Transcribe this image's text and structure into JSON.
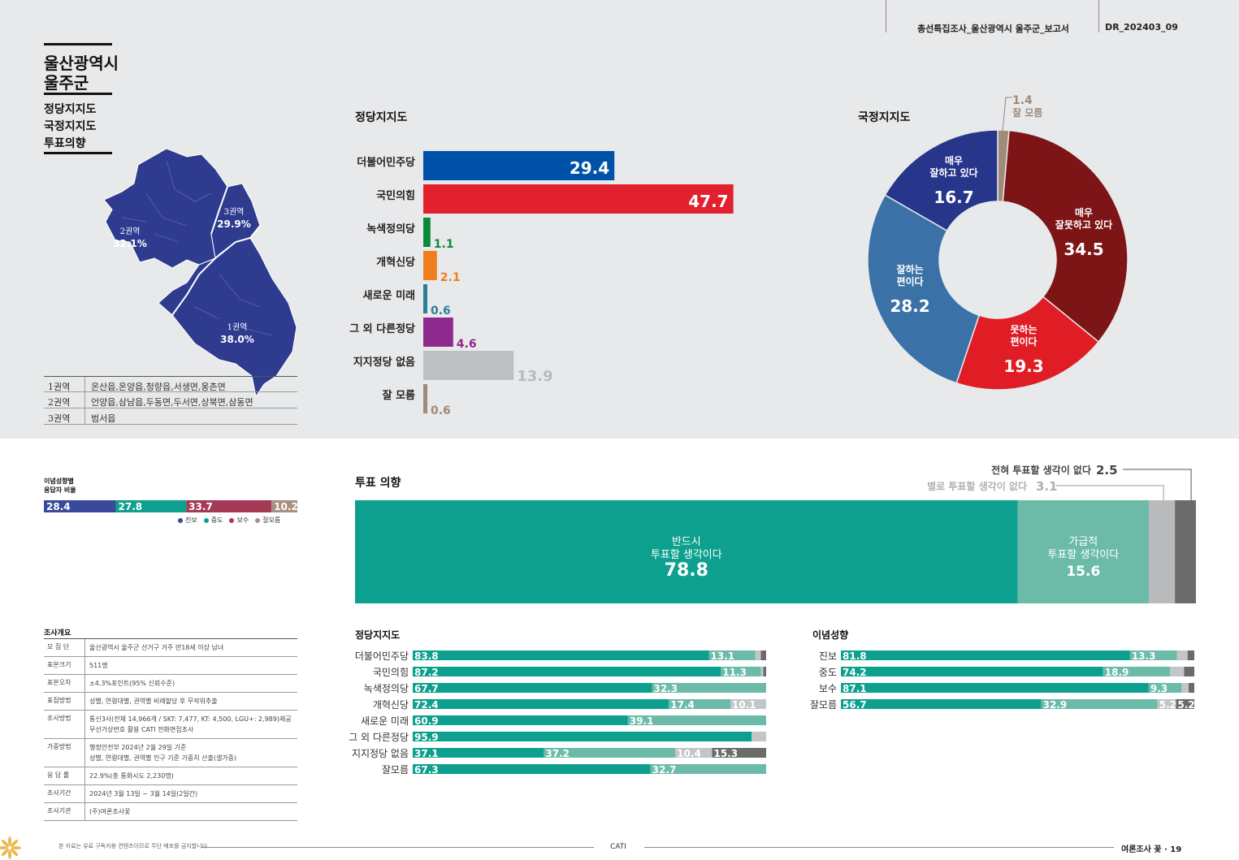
{
  "header": {
    "title": "총선특집조사_울산광역시 울주군_보고서",
    "code": "DR_202403_09"
  },
  "page_title": {
    "line1": "울산광역시",
    "line2": "울주군"
  },
  "subnav": [
    "정당지지도",
    "국정지지도",
    "투표의향"
  ],
  "map": {
    "regions": [
      {
        "label": "1권역",
        "pct": "38.0%"
      },
      {
        "label": "2권역",
        "pct": "32.1%"
      },
      {
        "label": "3권역",
        "pct": "29.9%"
      }
    ],
    "color": "#2f3b8f"
  },
  "region_table": [
    {
      "name": "1권역",
      "desc": "온산읍,온양읍,청량읍,서생면,웅촌면"
    },
    {
      "name": "2권역",
      "desc": "언양읍,삼남읍,두동면,두서면,상북면,삼동면"
    },
    {
      "name": "3권역",
      "desc": "범서읍"
    }
  ],
  "ideology_mix": {
    "title_line1": "이념성향별",
    "title_line2": "응답자 비율",
    "segments": [
      {
        "name": "진보",
        "value": 28.4,
        "label": "28.4",
        "color": "#3a4a9a"
      },
      {
        "name": "중도",
        "value": 27.8,
        "label": "27.8",
        "color": "#0ea08e"
      },
      {
        "name": "보수",
        "value": 33.7,
        "label": "33.7",
        "color": "#a43a55"
      },
      {
        "name": "잘모름",
        "value": 10.2,
        "label": "10.2",
        "color": "#a89080"
      }
    ]
  },
  "survey": {
    "title": "조사개요",
    "rows": [
      {
        "k": "모 집 단",
        "v": [
          "울산광역시 울주군 선거구 거주 만18세 이상 남녀"
        ]
      },
      {
        "k": "표본크기",
        "v": [
          "511명"
        ]
      },
      {
        "k": "표본오차",
        "v": [
          "±4.3%포인트(95% 신뢰수준)"
        ]
      },
      {
        "k": "표집방법",
        "v": [
          "성별, 연령대별, 권역별 비례할당 후 무작위추출"
        ]
      },
      {
        "k": "조사방법",
        "v": [
          "통신3사(전체 14,966개 / SKT: 7,477, KT: 4,500, LGU+: 2,989)제공",
          "무선가상번호 활용 CATI 전화면접조사"
        ]
      },
      {
        "k": "가중방법",
        "v": [
          "행정안전부 2024년 2월 29일 기준",
          "성별, 연령대별, 권역별 인구 기준 가중치 산출(셀가중)"
        ]
      },
      {
        "k": "응 답 률",
        "v": [
          "22.9%(총 통화시도 2,230명)"
        ]
      },
      {
        "k": "조사기간",
        "v": [
          "2024년 3월 13일 ~ 3월 14일(2일간)"
        ]
      },
      {
        "k": "조사기관",
        "v": [
          "(주)여론조사꽃"
        ]
      }
    ]
  },
  "footer": {
    "note": "본 자료는 유료 구독자용 컨텐츠이므로 무단 배포를 금지합니다",
    "center": "CATI",
    "right": "여론조사 꽃 · 19"
  },
  "chart_data": [
    {
      "id": "party_support",
      "type": "bar",
      "title": "정당지지도",
      "categories": [
        "더불어민주당",
        "국민의힘",
        "녹색정의당",
        "개혁신당",
        "새로운 미래",
        "그 외 다른정당",
        "지지정당 없음",
        "잘 모름"
      ],
      "values": [
        29.4,
        47.7,
        1.1,
        2.1,
        0.6,
        4.6,
        13.9,
        0.6
      ],
      "colors": [
        "#0051a8",
        "#e3202e",
        "#0a8a3c",
        "#f07d1e",
        "#2e7f95",
        "#8e2a8e",
        "#bdbfc2",
        "#a08a78"
      ],
      "xlim": [
        0,
        50
      ]
    },
    {
      "id": "gov_approval",
      "type": "pie",
      "title": "국정지지도",
      "slices": [
        {
          "label": "잘 모름",
          "value": 1.4,
          "color": "#a08a78"
        },
        {
          "label": "매우 잘못하고 있다",
          "value": 34.5,
          "color": "#7d1416"
        },
        {
          "label": "못하는 편이다",
          "value": 19.3,
          "color": "#e01c24"
        },
        {
          "label": "잘하는 편이다",
          "value": 28.2,
          "color": "#3a72a8"
        },
        {
          "label": "매우 잘하고 있다",
          "value": 16.7,
          "color": "#27358a"
        }
      ],
      "texts": {
        "very_good_1": "매우",
        "very_good_2": "잘하고 있다",
        "very_bad_1": "매우",
        "very_bad_2": "잘못하고 있다",
        "bad_1": "못하는",
        "bad_2": "편이다",
        "good_1": "잘하는",
        "good_2": "편이다",
        "unknown": "잘 모름"
      }
    },
    {
      "id": "vote_intent",
      "type": "bar",
      "title": "투표 의향",
      "segments": [
        {
          "label_1": "반드시",
          "label_2": "투표할 생각이다",
          "value": 78.8,
          "color": "#0ea08e"
        },
        {
          "label_1": "가급적",
          "label_2": "투표할 생각이다",
          "value": 15.6,
          "color": "#6cbba8"
        },
        {
          "label": "별로 투표할 생각이 없다",
          "value": 3.1,
          "color": "#b9babc"
        },
        {
          "label": "전혀 투표할 생각이 없다",
          "value": 2.5,
          "color": "#6b6b6b"
        }
      ]
    },
    {
      "id": "vote_by_party",
      "type": "bar",
      "title": "정당지지도",
      "categories": [
        "더불어민주당",
        "국민의힘",
        "녹색정의당",
        "개혁신당",
        "새로운 미래",
        "그 외 다른정당",
        "지지정당 없음",
        "잘모름"
      ],
      "series": [
        {
          "values": [
            83.8,
            87.2,
            67.7,
            72.4,
            60.9,
            95.9,
            37.1,
            67.3
          ],
          "color": "#0ea08e"
        },
        {
          "values": [
            13.1,
            11.3,
            32.3,
            17.4,
            39.1,
            0,
            37.2,
            32.7
          ],
          "color": "#6cbba8"
        },
        {
          "values": [
            1.6,
            0.7,
            0,
            10.1,
            0,
            4.1,
            10.4,
            0
          ],
          "color": "#c4c5c7"
        },
        {
          "values": [
            1.5,
            0.8,
            0,
            0,
            0,
            0,
            15.3,
            0
          ],
          "color": "#6b6b6b"
        }
      ],
      "labels": [
        [
          "83.8",
          "13.1",
          "",
          ""
        ],
        [
          "87.2",
          "11.3",
          "",
          ""
        ],
        [
          "67.7",
          "32.3",
          "",
          ""
        ],
        [
          "72.4",
          "17.4",
          "10.1",
          ""
        ],
        [
          "60.9",
          "39.1",
          "",
          ""
        ],
        [
          "95.9",
          "",
          "",
          ""
        ],
        [
          "37.1",
          "37.2",
          "10.4",
          "15.3"
        ],
        [
          "67.3",
          "32.7",
          "",
          ""
        ]
      ]
    },
    {
      "id": "vote_by_ideology",
      "type": "bar",
      "title": "이념성향",
      "categories": [
        "진보",
        "중도",
        "보수",
        "잘모름"
      ],
      "series": [
        {
          "values": [
            81.8,
            74.2,
            87.1,
            56.7
          ],
          "color": "#0ea08e"
        },
        {
          "values": [
            13.3,
            18.9,
            9.3,
            32.9
          ],
          "color": "#6cbba8"
        },
        {
          "values": [
            3.0,
            4.0,
            2.0,
            5.2
          ],
          "color": "#c4c5c7"
        },
        {
          "values": [
            1.9,
            2.9,
            1.6,
            5.2
          ],
          "color": "#6b6b6b"
        }
      ],
      "labels": [
        [
          "81.8",
          "13.3",
          "",
          ""
        ],
        [
          "74.2",
          "18.9",
          "",
          ""
        ],
        [
          "87.1",
          "9.3",
          "",
          ""
        ],
        [
          "56.7",
          "32.9",
          "5.2",
          "5.2"
        ]
      ]
    }
  ]
}
